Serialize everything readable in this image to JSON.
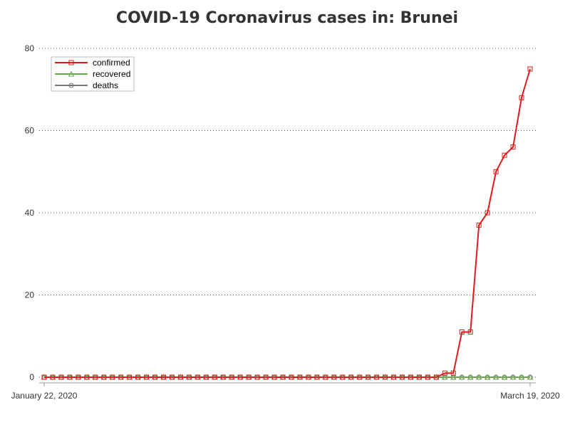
{
  "chart_data": {
    "type": "line",
    "title": "COVID-19 Coronavirus cases in: Brunei",
    "xlabel": "",
    "ylabel": "",
    "x_start_label": "January 22, 2020",
    "x_end_label": "March 19, 2020",
    "ylim": [
      0,
      80
    ],
    "yticks": [
      "0",
      "20",
      "40",
      "60",
      "80"
    ],
    "grid": "horizontal dotted",
    "legend_position": "top-left",
    "series": [
      {
        "name": "confirmed",
        "color": "#e31a1c",
        "marker": "square",
        "values": [
          0,
          0,
          0,
          0,
          0,
          0,
          0,
          0,
          0,
          0,
          0,
          0,
          0,
          0,
          0,
          0,
          0,
          0,
          0,
          0,
          0,
          0,
          0,
          0,
          0,
          0,
          0,
          0,
          0,
          0,
          0,
          0,
          0,
          0,
          0,
          0,
          0,
          0,
          0,
          0,
          0,
          0,
          0,
          0,
          0,
          0,
          0,
          1,
          1,
          11,
          11,
          37,
          40,
          50,
          54,
          56,
          68,
          75
        ]
      },
      {
        "name": "recovered",
        "color": "#6aa84f",
        "marker": "triangle",
        "values": [
          0,
          0,
          0,
          0,
          0,
          0,
          0,
          0,
          0,
          0,
          0,
          0,
          0,
          0,
          0,
          0,
          0,
          0,
          0,
          0,
          0,
          0,
          0,
          0,
          0,
          0,
          0,
          0,
          0,
          0,
          0,
          0,
          0,
          0,
          0,
          0,
          0,
          0,
          0,
          0,
          0,
          0,
          0,
          0,
          0,
          0,
          0,
          0,
          0,
          0,
          0,
          0,
          0,
          0,
          0,
          0,
          0,
          0
        ]
      },
      {
        "name": "deaths",
        "color": "#777777",
        "marker": "circle",
        "values": [
          0,
          0,
          0,
          0,
          0,
          0,
          0,
          0,
          0,
          0,
          0,
          0,
          0,
          0,
          0,
          0,
          0,
          0,
          0,
          0,
          0,
          0,
          0,
          0,
          0,
          0,
          0,
          0,
          0,
          0,
          0,
          0,
          0,
          0,
          0,
          0,
          0,
          0,
          0,
          0,
          0,
          0,
          0,
          0,
          0,
          0,
          0,
          0,
          0,
          0,
          0,
          0,
          0,
          0,
          0,
          0,
          0,
          0
        ]
      }
    ]
  }
}
